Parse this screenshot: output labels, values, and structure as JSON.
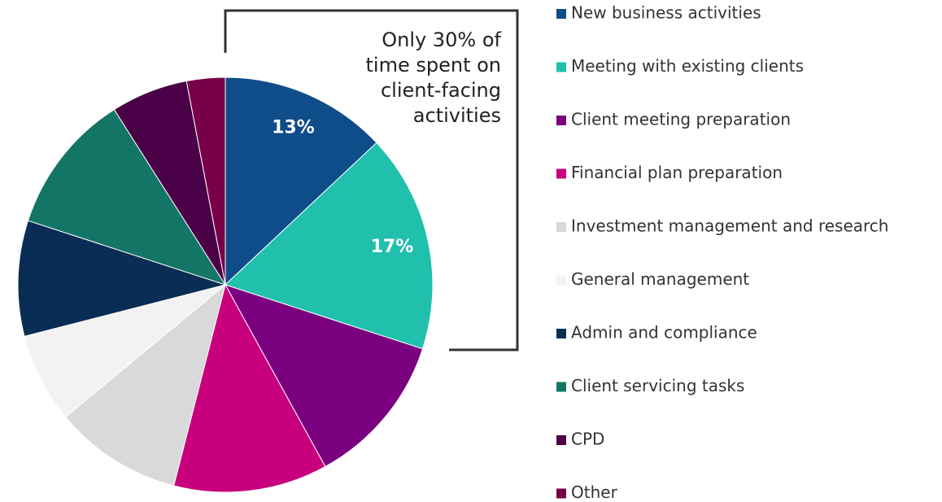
{
  "chart_data": {
    "type": "pie",
    "categories": [
      "New business activities",
      "Meeting with existing clients",
      "Client meeting preparation",
      "Financial plan preparation",
      "Investment management and research",
      "General management",
      "Admin and compliance",
      "Client servicing tasks",
      "CPD",
      "Other"
    ],
    "values": [
      13,
      17,
      12,
      12,
      10,
      7,
      9,
      11,
      6,
      3
    ],
    "value_labels": [
      "13%",
      "17%",
      null,
      null,
      null,
      null,
      null,
      null,
      null,
      null
    ],
    "colors": [
      "#0f4c8a",
      "#20c0ad",
      "#7a0080",
      "#c8007e",
      "#d9d9d9",
      "#f2f2f2",
      "#0a2d55",
      "#137565",
      "#4a0046",
      "#780048"
    ],
    "annotation": [
      "Only 30% of",
      "time spent on",
      "client-facing",
      "activities"
    ],
    "legend": "right"
  }
}
